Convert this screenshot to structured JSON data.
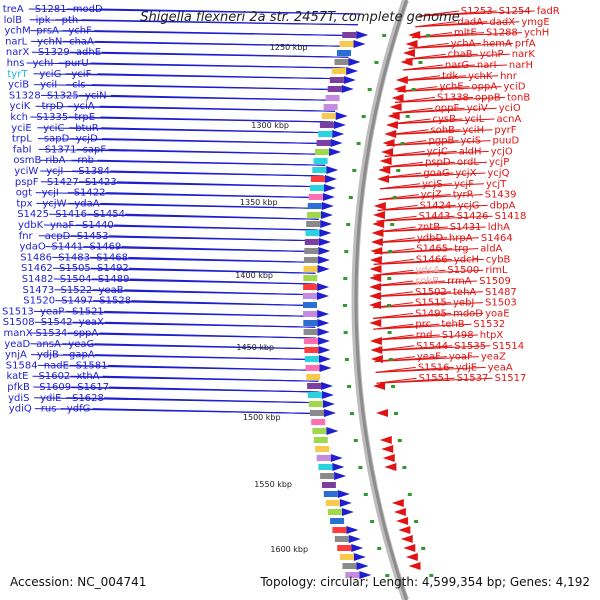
{
  "title": "Shigella flexneri 2a str. 2457T, complete genome",
  "footer": {
    "accession_label": "Accession:",
    "accession": "NC_004741",
    "topology_label": "Topology:",
    "topology": "circular",
    "length_label": "Length:",
    "length": "4,599,354 bp",
    "genes_label": "Genes:",
    "genes": "4,192"
  },
  "colors": {
    "forward_strand": "#1f1fd0",
    "reverse_strand": "#e01414",
    "backbone": "#8c8c8c",
    "highlight_forward": "#19b7e6",
    "highlight_reverse": "#f2a0a0",
    "tick_marker": "#2f9a2f"
  },
  "scale_labels": [
    "1250 kbp",
    "1300 kbp",
    "1350 kbp",
    "1400 kbp",
    "1450 kbp",
    "1500 kbp",
    "1550 kbp",
    "1600 kbp"
  ],
  "forward_genes": [
    "treA",
    "S1281",
    "modD",
    "lolB",
    "ipk",
    "pth",
    "ychM",
    "prsA",
    "ychF",
    "narL",
    "ychN",
    "chaA",
    "narX",
    "S1329",
    "adhE",
    "hns",
    "ychI",
    "purU",
    "tyrT",
    "yciG",
    "yciF",
    "yciB",
    "yciI",
    "cls",
    "S1328",
    "S1325",
    "yciN",
    "yciK",
    "trpD",
    "yciA",
    "kch",
    "S1335",
    "trpE",
    "yciE",
    "yciC",
    "btuR",
    "trpL",
    "sapD",
    "ycjD",
    "fabI",
    "S1371",
    "sapF",
    "osmB",
    "ribA",
    "rnb",
    "yciW",
    "ycjI",
    "S1384",
    "pspF",
    "S1427",
    "S1423",
    "ogt",
    "ycjI",
    "S1422",
    "tpx",
    "ycjW",
    "ydaA",
    "S1425",
    "S1416",
    "S1454",
    "ydbK",
    "ynaF",
    "S1440",
    "fnr",
    "acpD",
    "S1453",
    "ydaO",
    "S1441",
    "S1469",
    "S1486",
    "S1483",
    "S1468",
    "S1462",
    "S1505",
    "S1492",
    "S1482",
    "S1504",
    "S1489",
    "S1473",
    "S1522",
    "yeaB",
    "S1520",
    "S1497",
    "S1528",
    "S1513",
    "yeaP",
    "S1521",
    "S1508",
    "S1542",
    "yeaX",
    "manX",
    "S1534",
    "sppA",
    "yeaD",
    "ansA",
    "yeaG",
    "ynjA",
    "ydjB",
    "gapA",
    "S1584",
    "nadE",
    "S1581",
    "katE",
    "S1602",
    "xthA",
    "pfkB",
    "S1609",
    "S1617",
    "ydiS",
    "ydiE",
    "S1628",
    "ydiQ",
    "rus",
    "ydfG"
  ],
  "reverse_genes": [
    "S1253",
    "S1254",
    "fadR",
    "dadA",
    "dadX",
    "ymgE",
    "mltE",
    "S1288",
    "ychH",
    "ychA",
    "hemA",
    "prfA",
    "chaB",
    "ychP",
    "narK",
    "narG",
    "narI",
    "narH",
    "tdk",
    "ychK",
    "hnr",
    "ychE",
    "oppA",
    "yciD",
    "S1338",
    "oppB",
    "tonB",
    "oppF",
    "yciV",
    "yciO",
    "cysB",
    "yciL",
    "acnA",
    "sohB",
    "yciH",
    "pyrF",
    "pgpB",
    "yciS",
    "puuD",
    "ycjC",
    "aldH",
    "ycjO",
    "pspD",
    "ordL",
    "ycjP",
    "goaG",
    "ycjX",
    "ycjQ",
    "ycjS",
    "ycjF",
    "ycjT",
    "ycjZ",
    "tyrR",
    "S1439",
    "S1424",
    "ycjG",
    "dbpA",
    "S1443",
    "S1426",
    "S1418",
    "zntB",
    "S1431",
    "ldhA",
    "ydbD",
    "hrpA",
    "S1464",
    "S1465",
    "trg",
    "aldA",
    "S1466",
    "ydcH",
    "cybB",
    "ydcA",
    "S1500",
    "rimL",
    "sokB",
    "rrmA",
    "S1509",
    "S1502",
    "tehA",
    "S1487",
    "S1515",
    "yebJ",
    "S1503",
    "S1495",
    "mdoD",
    "yoaE",
    "prc",
    "tehB",
    "S1532",
    "rnd",
    "S1498",
    "htpX",
    "S1544",
    "S1535",
    "S1514",
    "yeaF",
    "yoaF",
    "yeaZ",
    "S1516",
    "ydjE",
    "yeaA",
    "S1551",
    "S1537",
    "S1517"
  ]
}
